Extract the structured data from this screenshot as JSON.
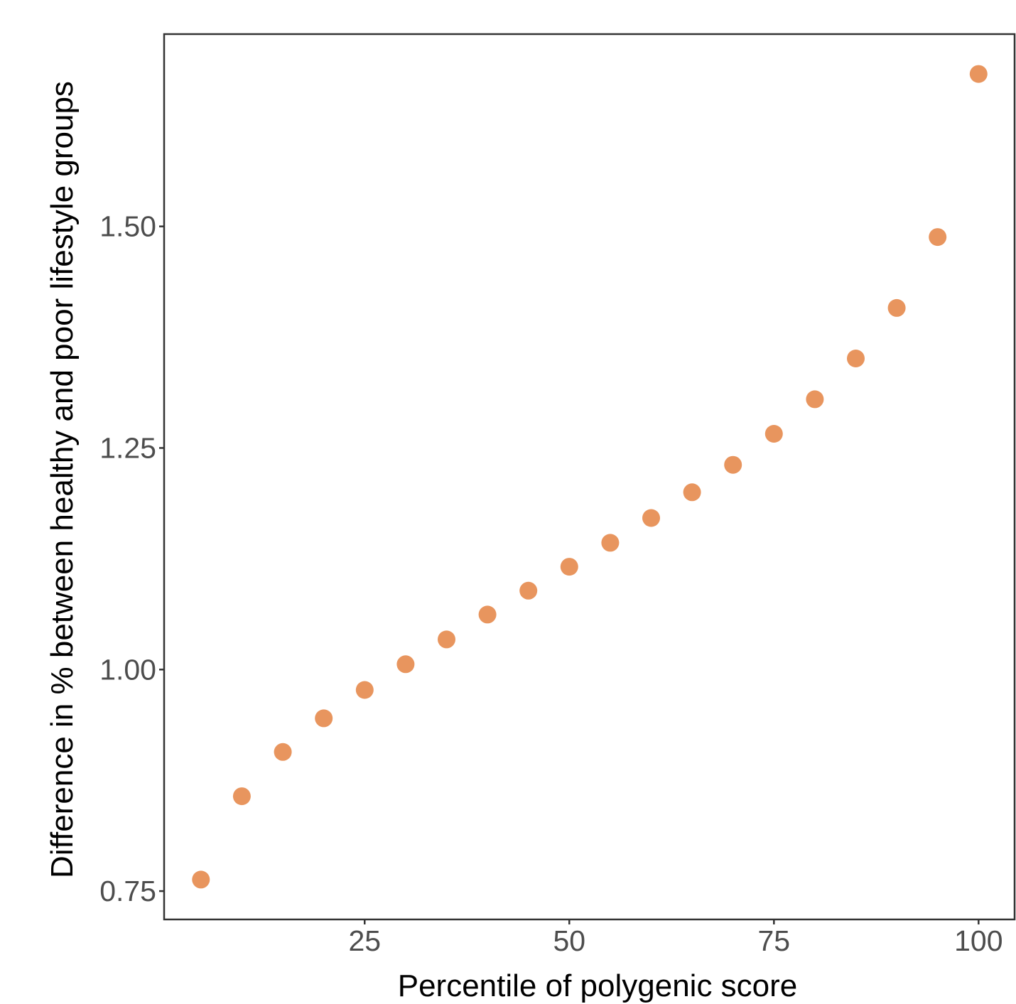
{
  "chart_data": {
    "type": "scatter",
    "title": "",
    "xlabel": "Percentile of polygenic score",
    "ylabel": "Difference in % between healthy and poor lifestyle groups",
    "x": [
      5,
      10,
      15,
      20,
      25,
      30,
      35,
      40,
      45,
      50,
      55,
      60,
      65,
      70,
      75,
      80,
      85,
      90,
      95,
      100
    ],
    "y": [
      0.763,
      0.857,
      0.907,
      0.945,
      0.977,
      1.006,
      1.034,
      1.062,
      1.089,
      1.116,
      1.143,
      1.171,
      1.2,
      1.231,
      1.266,
      1.305,
      1.351,
      1.408,
      1.488,
      1.672
    ],
    "xlim": [
      0.5,
      104.4
    ],
    "ylim": [
      0.718,
      1.717
    ],
    "xticks": [
      25,
      50,
      75,
      100
    ],
    "xtick_labels": [
      "25",
      "50",
      "75",
      "100"
    ],
    "yticks": [
      0.75,
      1.0,
      1.25,
      1.5
    ],
    "ytick_labels": [
      "0.75",
      "1.00",
      "1.25",
      "1.50"
    ],
    "grid": false,
    "legend": "none",
    "point_color": "#E8955E",
    "panel_border_color": "#333333",
    "tick_color": "#333333"
  }
}
